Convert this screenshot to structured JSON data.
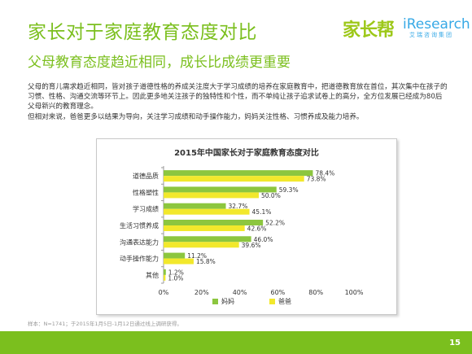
{
  "header": {
    "title": "家长对于家庭教育态度对比",
    "subtitle": "父母教育态度趋近相同，成长比成绩更重要",
    "logo_jiazhangbang": "家长帮",
    "logo_iresearch": "iResearch",
    "logo_iresearch_cn": "艾瑞咨询集团"
  },
  "body": {
    "paragraph1": "父母的育儿需求趋近相同，皆对孩子道德性格的养成关注度大于学习成绩的培养在家庭教育中，把道德教育放在首位，其次集中在孩子的习惯、性格、沟通交流等环节上。因此更多地关注孩子的独特性和个性，而不单纯让孩子追求试卷上的高分，全方位发展已经成为80后父母新兴的教育理念。",
    "paragraph2": "但相对来说，爸爸更多以结果为导向，关注学习成绩和动手操作能力，妈妈关注性格、习惯养成及能力培养。"
  },
  "footer": {
    "source": "样本：N=1741；于2015年1月5日-1月12日通过线上调研获得。",
    "page_number": "15"
  },
  "colors": {
    "accent": "#7bbf1e",
    "mom": "#8cc63f",
    "dad": "#f2e82c"
  },
  "chart_data": {
    "type": "bar",
    "orientation": "horizontal",
    "title": "2015年中国家长对于家庭教育态度对比",
    "categories": [
      "道德品质",
      "性格塑性",
      "学习成绩",
      "生活习惯养成",
      "沟通表达能力",
      "动手操作能力",
      "其他"
    ],
    "series": [
      {
        "name": "妈妈",
        "values": [
          78.4,
          59.3,
          32.7,
          52.2,
          46.0,
          11.2,
          1.2
        ],
        "labels": [
          "78.4%",
          "59.3%",
          "32.7%",
          "52.2%",
          "46.0%",
          "11.2%",
          "1.2%"
        ]
      },
      {
        "name": "爸爸",
        "values": [
          73.8,
          50.0,
          45.1,
          42.6,
          39.6,
          15.8,
          1.0
        ],
        "labels": [
          "73.8%",
          "50.0%",
          "45.1%",
          "42.6%",
          "39.6%",
          "15.8%",
          "1.0%"
        ]
      }
    ],
    "xlim": [
      0,
      100
    ],
    "xticks": [
      "0%",
      "20%",
      "40%",
      "60%",
      "80%",
      "100%"
    ],
    "grid": false,
    "legend": "bottom"
  }
}
